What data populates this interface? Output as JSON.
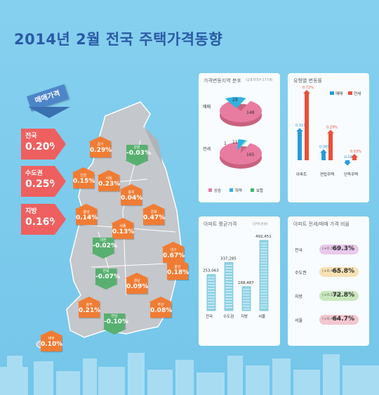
{
  "title": "2014년 2월 전국 주택가격동향",
  "map": {
    "tag": "매매가격",
    "summary": [
      {
        "label": "전국",
        "value": "0.20%"
      },
      {
        "label": "수도권",
        "value": "0.25%"
      },
      {
        "label": "지방",
        "value": "0.16%"
      }
    ],
    "regions": [
      {
        "name": "경기",
        "value": "0.29%",
        "dir": "up"
      },
      {
        "name": "강원",
        "value": "-0.03%",
        "dir": "down"
      },
      {
        "name": "인천",
        "value": "0.15%",
        "dir": "up"
      },
      {
        "name": "서울",
        "value": "0.23%",
        "dir": "up"
      },
      {
        "name": "충북",
        "value": "0.04%",
        "dir": "up"
      },
      {
        "name": "충남",
        "value": "0.14%",
        "dir": "up"
      },
      {
        "name": "세종",
        "value": "0.13%",
        "dir": "up"
      },
      {
        "name": "경북",
        "value": "0.47%",
        "dir": "up"
      },
      {
        "name": "대전",
        "value": "-0.02%",
        "dir": "down"
      },
      {
        "name": "대구",
        "value": "0.67%",
        "dir": "up"
      },
      {
        "name": "전북",
        "value": "-0.07%",
        "dir": "down"
      },
      {
        "name": "울산",
        "value": "0.18%",
        "dir": "up"
      },
      {
        "name": "경남",
        "value": "0.09%",
        "dir": "up"
      },
      {
        "name": "광주",
        "value": "0.21%",
        "dir": "up"
      },
      {
        "name": "전남",
        "value": "-0.10%",
        "dir": "down"
      },
      {
        "name": "부산",
        "value": "0.08%",
        "dir": "up"
      },
      {
        "name": "제주",
        "value": "0.10%",
        "dir": "up"
      }
    ]
  },
  "chart_data": [
    {
      "type": "pie",
      "title": "가격변동지역 분포",
      "note": "(공표지역수:177개)",
      "legend": [
        "상승",
        "하락",
        "보합"
      ],
      "colors": [
        "#e87ca0",
        "#2fb2e0",
        "#3eb56a"
      ],
      "pies": [
        {
          "name": "매매",
          "values": [
            148,
            29,
            0
          ],
          "labels": [
            "148",
            "29",
            ""
          ]
        },
        {
          "name": "전세",
          "values": [
            165,
            11,
            1
          ],
          "labels": [
            "165",
            "11",
            "1"
          ]
        }
      ]
    },
    {
      "type": "bar",
      "title": "유형별 변동률",
      "series": [
        {
          "name": "매매",
          "color": "#2a9ad8",
          "values": [
            0.31,
            0.08,
            -0.02
          ]
        },
        {
          "name": "전세",
          "color": "#e8503a",
          "values": [
            0.72,
            0.29,
            0.03
          ]
        }
      ],
      "categories": [
        "아파트",
        "연립주택",
        "단독주택"
      ],
      "value_labels": [
        [
          "0.31%",
          "0.08%",
          "-0.02%"
        ],
        [
          "0.72%",
          "0.29%",
          "0.03%"
        ]
      ]
    },
    {
      "type": "bar",
      "title": "아파트 평균가격",
      "note": "(단위:천원)",
      "categories": [
        "전국",
        "수도권",
        "지방",
        "서울"
      ],
      "values": [
        253063,
        337285,
        168487,
        492451
      ],
      "value_labels": [
        "253,063",
        "337,285",
        "168,487",
        "492,451"
      ]
    },
    {
      "type": "bar",
      "title": "아파트 전세/매매 가격 비율",
      "categories": [
        "전국",
        "수도권",
        "지방",
        "서울"
      ],
      "values": [
        69.3,
        65.8,
        72.8,
        64.7
      ],
      "value_labels": [
        "69.3%",
        "65.8%",
        "72.8%",
        "64.7%"
      ],
      "changes": [
        "(+0.3%p)",
        "(+0.4%p)",
        "(+0.1%p)",
        "(+0.4%p)"
      ],
      "colors": [
        "#e9c8ec",
        "#f7e2b4",
        "#c9e8bc",
        "#f4c6cf"
      ]
    }
  ]
}
